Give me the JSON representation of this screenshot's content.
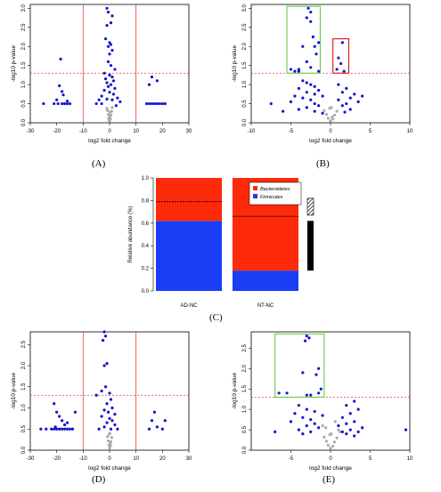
{
  "captions": {
    "a": "(A)",
    "b": "(B)",
    "c": "(C)",
    "d": "(D)",
    "e": "(E)"
  },
  "colors": {
    "point": "#1515d0",
    "gray_point": "#aaaaaa",
    "threshold": "#e84040",
    "green_box": "#66cc44",
    "red_box": "#e01010",
    "firmicutes": "#1a3df5",
    "bacteroidetes": "#ff2a0a"
  },
  "chart_data": [
    {
      "id": "A",
      "type": "scatter",
      "xlabel": "log2 fold change",
      "ylabel": "-log10 p-value",
      "xlim": [
        -30,
        30
      ],
      "ylim": [
        0,
        3.1
      ],
      "xticks": [
        "-30",
        "-20",
        "-10",
        "0",
        "10",
        "20",
        "30"
      ],
      "xtick_values": [
        -30,
        -20,
        -10,
        0,
        10,
        20,
        30
      ],
      "yticks": [
        "0.0",
        "0.5",
        "1.0",
        "1.5",
        "2.0",
        "2.5",
        "3.0"
      ],
      "ytick_values": [
        0,
        0.5,
        1,
        1.5,
        2,
        2.5,
        3
      ],
      "hline": 1.3,
      "vlines": [
        -10,
        10
      ],
      "points": [
        [
          -18.5,
          1.67
        ],
        [
          -19,
          0.97
        ],
        [
          -18,
          0.82
        ],
        [
          -17.5,
          0.73
        ],
        [
          -20,
          0.6
        ],
        [
          -16,
          0.57
        ],
        [
          -21,
          0.5
        ],
        [
          -19.5,
          0.5
        ],
        [
          -18,
          0.5
        ],
        [
          -17,
          0.5
        ],
        [
          -16,
          0.5
        ],
        [
          -15,
          0.5
        ],
        [
          -25,
          0.5
        ],
        [
          -1,
          3.0
        ],
        [
          -0.5,
          2.9
        ],
        [
          1,
          2.8
        ],
        [
          0.5,
          2.62
        ],
        [
          -1,
          2.55
        ],
        [
          -1.5,
          2.2
        ],
        [
          0,
          2.1
        ],
        [
          0.5,
          2.05
        ],
        [
          -0.5,
          2.0
        ],
        [
          1,
          1.9
        ],
        [
          0,
          1.8
        ],
        [
          -0.5,
          1.6
        ],
        [
          0.5,
          1.5
        ],
        [
          2,
          1.4
        ],
        [
          -2,
          1.3
        ],
        [
          0,
          1.25
        ],
        [
          1,
          1.2
        ],
        [
          -1.5,
          1.15
        ],
        [
          1.5,
          1.1
        ],
        [
          -1,
          1.05
        ],
        [
          0.5,
          1.0
        ],
        [
          -0.5,
          0.95
        ],
        [
          2,
          0.9
        ],
        [
          -2,
          0.85
        ],
        [
          0,
          0.8
        ],
        [
          1.5,
          0.75
        ],
        [
          -3,
          0.7
        ],
        [
          3,
          0.65
        ],
        [
          -1,
          0.62
        ],
        [
          1,
          0.6
        ],
        [
          -3,
          0.5
        ],
        [
          4,
          0.55
        ],
        [
          -5,
          0.5
        ],
        [
          -4,
          0.6
        ],
        [
          2.5,
          0.45
        ],
        [
          16,
          1.2
        ],
        [
          18,
          1.1
        ],
        [
          15,
          1.0
        ],
        [
          14,
          0.5
        ],
        [
          15,
          0.5
        ],
        [
          16,
          0.5
        ],
        [
          17,
          0.5
        ],
        [
          18,
          0.5
        ],
        [
          19,
          0.5
        ],
        [
          20,
          0.5
        ],
        [
          21,
          0.5
        ]
      ],
      "gray_points": [
        [
          0,
          0.05
        ],
        [
          0.3,
          0.1
        ],
        [
          -0.3,
          0.12
        ],
        [
          0.5,
          0.2
        ],
        [
          -0.5,
          0.22
        ],
        [
          0.8,
          0.3
        ],
        [
          -0.8,
          0.32
        ],
        [
          1,
          0.4
        ],
        [
          -1,
          0.38
        ],
        [
          0,
          0.15
        ],
        [
          0.2,
          0.28
        ],
        [
          -0.2,
          0.08
        ]
      ]
    },
    {
      "id": "B",
      "type": "scatter",
      "xlabel": "log2 fold change",
      "ylabel": "-log10 p-value",
      "xlim": [
        -10,
        10
      ],
      "ylim": [
        0,
        3.1
      ],
      "xticks": [
        "-10",
        "-5",
        "0",
        "5",
        "10"
      ],
      "xtick_values": [
        -10,
        -5,
        0,
        5,
        10
      ],
      "yticks": [
        "0.0",
        "0.5",
        "1.0",
        "1.5",
        "2.0",
        "2.5",
        "3.0"
      ],
      "ytick_values": [
        0,
        0.5,
        1,
        1.5,
        2,
        2.5,
        3
      ],
      "hline": 1.3,
      "boxes": [
        {
          "color": "green",
          "x": [
            -5.5,
            -1.3
          ],
          "y": [
            1.3,
            3.05
          ]
        },
        {
          "color": "red",
          "x": [
            0.3,
            2.3
          ],
          "y": [
            1.3,
            2.2
          ]
        }
      ],
      "points": [
        [
          -2.8,
          3.0
        ],
        [
          -2.5,
          2.9
        ],
        [
          -3.0,
          2.75
        ],
        [
          -2.5,
          2.65
        ],
        [
          -2.2,
          2.25
        ],
        [
          -1.5,
          2.1
        ],
        [
          -3.5,
          2.0
        ],
        [
          -2,
          2.0
        ],
        [
          -1.8,
          1.8
        ],
        [
          -3,
          1.6
        ],
        [
          -2.5,
          1.45
        ],
        [
          -4,
          1.4
        ],
        [
          -1.5,
          1.35
        ],
        [
          -5,
          1.4
        ],
        [
          -4.5,
          1.35
        ],
        [
          -4,
          1.35
        ],
        [
          1.5,
          2.1
        ],
        [
          1,
          1.7
        ],
        [
          1.3,
          1.55
        ],
        [
          0.8,
          1.4
        ],
        [
          1.7,
          1.35
        ],
        [
          -3.5,
          1.1
        ],
        [
          -3,
          1.05
        ],
        [
          -2.5,
          1.0
        ],
        [
          -2,
          0.95
        ],
        [
          -4,
          0.9
        ],
        [
          -1.5,
          0.85
        ],
        [
          -3,
          0.8
        ],
        [
          -2,
          0.75
        ],
        [
          -4.5,
          0.7
        ],
        [
          -1,
          0.7
        ],
        [
          -3.5,
          0.65
        ],
        [
          -2.5,
          0.6
        ],
        [
          -5,
          0.55
        ],
        [
          -7.5,
          0.5
        ],
        [
          -2,
          0.5
        ],
        [
          -1.5,
          0.45
        ],
        [
          -3,
          0.4
        ],
        [
          -4,
          0.35
        ],
        [
          -6,
          0.3
        ],
        [
          -2,
          0.3
        ],
        [
          -1,
          0.25
        ],
        [
          1,
          1.0
        ],
        [
          2,
          0.9
        ],
        [
          1.5,
          0.8
        ],
        [
          3,
          0.75
        ],
        [
          2.5,
          0.65
        ],
        [
          1,
          0.6
        ],
        [
          2,
          0.5
        ],
        [
          3.5,
          0.55
        ],
        [
          1.5,
          0.45
        ],
        [
          4,
          0.7
        ],
        [
          2.5,
          0.35
        ],
        [
          1.8,
          0.28
        ]
      ],
      "gray_points": [
        [
          0,
          0.05
        ],
        [
          0.3,
          0.1
        ],
        [
          -0.3,
          0.12
        ],
        [
          0.5,
          0.2
        ],
        [
          -0.5,
          0.22
        ],
        [
          0.8,
          0.3
        ],
        [
          -0.8,
          0.32
        ],
        [
          0.1,
          0.4
        ],
        [
          -0.1,
          0.38
        ],
        [
          0.2,
          0.15
        ]
      ]
    },
    {
      "id": "C",
      "type": "bar",
      "ylabel": "Relative abundance (%)",
      "ylim": [
        0,
        1.0
      ],
      "yticks": [
        "0.0",
        "0.2",
        "0.4",
        "0.6",
        "0.8",
        "1.0"
      ],
      "ytick_values": [
        0,
        0.2,
        0.4,
        0.6,
        0.8,
        1.0
      ],
      "categories": [
        "AD-NC",
        "NT-NC"
      ],
      "series": [
        {
          "name": "Firmicutes",
          "values": [
            0.62,
            0.18
          ]
        },
        {
          "name": "Bacteroidetes",
          "values": [
            0.38,
            0.82
          ]
        }
      ],
      "dashed_lines": [
        0.79,
        0.66
      ],
      "legend_position": "top-right"
    },
    {
      "id": "D",
      "type": "scatter",
      "xlabel": "log2 fold change",
      "ylabel": "-log10 p-value",
      "xlim": [
        -30,
        30
      ],
      "ylim": [
        0,
        2.8
      ],
      "xticks": [
        "-30",
        "-20",
        "-10",
        "0",
        "10",
        "20",
        "30"
      ],
      "xtick_values": [
        -30,
        -20,
        -10,
        0,
        10,
        20,
        30
      ],
      "yticks": [
        "0.0",
        "0.5",
        "1.0",
        "1.5",
        "2.0",
        "2.5"
      ],
      "ytick_values": [
        0,
        0.5,
        1,
        1.5,
        2,
        2.5
      ],
      "hline": 1.3,
      "vlines": [
        -10,
        10
      ],
      "points": [
        [
          -2,
          2.8
        ],
        [
          -1.5,
          2.7
        ],
        [
          -2.5,
          2.6
        ],
        [
          -1,
          2.05
        ],
        [
          -2,
          2.0
        ],
        [
          -1.5,
          1.5
        ],
        [
          -3,
          1.4
        ],
        [
          0,
          1.35
        ],
        [
          -5,
          1.3
        ],
        [
          0.5,
          1.2
        ],
        [
          -1,
          1.1
        ],
        [
          1,
          1.0
        ],
        [
          -2,
          0.95
        ],
        [
          -0.5,
          0.9
        ],
        [
          2,
          0.85
        ],
        [
          -3,
          0.8
        ],
        [
          0,
          0.75
        ],
        [
          1,
          0.7
        ],
        [
          -1,
          0.65
        ],
        [
          2,
          0.6
        ],
        [
          -2,
          0.55
        ],
        [
          3,
          0.5
        ],
        [
          -4,
          0.5
        ],
        [
          0.5,
          0.5
        ],
        [
          -21,
          1.1
        ],
        [
          -20,
          0.9
        ],
        [
          -19,
          0.8
        ],
        [
          -18,
          0.7
        ],
        [
          -17,
          0.6
        ],
        [
          -16,
          0.65
        ],
        [
          -20.5,
          0.55
        ],
        [
          -22,
          0.5
        ],
        [
          -21,
          0.5
        ],
        [
          -20,
          0.5
        ],
        [
          -19,
          0.5
        ],
        [
          -18,
          0.5
        ],
        [
          -17,
          0.5
        ],
        [
          -16,
          0.5
        ],
        [
          -15,
          0.5
        ],
        [
          -14,
          0.5
        ],
        [
          -13,
          0.9
        ],
        [
          -26,
          0.5
        ],
        [
          -24,
          0.5
        ],
        [
          17,
          0.9
        ],
        [
          16,
          0.7
        ],
        [
          18,
          0.55
        ],
        [
          15,
          0.5
        ],
        [
          20,
          0.5
        ],
        [
          21,
          0.7
        ]
      ],
      "gray_points": [
        [
          0,
          0.05
        ],
        [
          0.3,
          0.1
        ],
        [
          -0.3,
          0.12
        ],
        [
          0.5,
          0.2
        ],
        [
          -0.5,
          0.22
        ],
        [
          0.8,
          0.3
        ],
        [
          -0.8,
          0.32
        ],
        [
          0.1,
          0.4
        ],
        [
          -0.1,
          0.38
        ],
        [
          0.2,
          0.15
        ]
      ]
    },
    {
      "id": "E",
      "type": "scatter",
      "xlabel": "log2 fold change",
      "ylabel": "-log10 p-value",
      "xlim": [
        -10,
        10
      ],
      "ylim": [
        0,
        2.9
      ],
      "xticks": [
        "-5",
        "0",
        "5",
        "10"
      ],
      "xtick_values": [
        -5,
        0,
        5,
        10
      ],
      "yticks": [
        "0.0",
        "0.5",
        "1.0",
        "1.5",
        "2.0",
        "2.5"
      ],
      "ytick_values": [
        0,
        0.5,
        1,
        1.5,
        2,
        2.5
      ],
      "hline": 1.3,
      "boxes": [
        {
          "color": "green",
          "x": [
            -7,
            -0.8
          ],
          "y": [
            1.3,
            2.85
          ]
        }
      ],
      "points": [
        [
          -3,
          2.8
        ],
        [
          -2.7,
          2.75
        ],
        [
          -3.2,
          2.68
        ],
        [
          -1.5,
          2.0
        ],
        [
          -3.5,
          1.9
        ],
        [
          -1.8,
          1.85
        ],
        [
          -1.2,
          1.5
        ],
        [
          -1.5,
          1.4
        ],
        [
          -6.5,
          1.4
        ],
        [
          -5.5,
          1.4
        ],
        [
          -3,
          1.35
        ],
        [
          -2.5,
          1.35
        ],
        [
          -4,
          1.1
        ],
        [
          -3,
          1.0
        ],
        [
          -2,
          0.95
        ],
        [
          -4.5,
          0.9
        ],
        [
          -1,
          0.85
        ],
        [
          -3.5,
          0.8
        ],
        [
          -2.5,
          0.75
        ],
        [
          -5,
          0.7
        ],
        [
          -2,
          0.65
        ],
        [
          -3,
          0.6
        ],
        [
          -1.5,
          0.55
        ],
        [
          -4,
          0.5
        ],
        [
          -7,
          0.45
        ],
        [
          -2.5,
          0.45
        ],
        [
          -3.5,
          0.4
        ],
        [
          3,
          1.2
        ],
        [
          2,
          1.1
        ],
        [
          3.5,
          1.0
        ],
        [
          2.5,
          0.9
        ],
        [
          1.5,
          0.8
        ],
        [
          3,
          0.7
        ],
        [
          2,
          0.65
        ],
        [
          1,
          0.6
        ],
        [
          4,
          0.55
        ],
        [
          2.5,
          0.5
        ],
        [
          3.5,
          0.45
        ],
        [
          1.5,
          0.45
        ],
        [
          9.5,
          0.5
        ],
        [
          2,
          0.4
        ],
        [
          3,
          0.35
        ]
      ],
      "gray_points": [
        [
          0,
          0.05
        ],
        [
          0.3,
          0.1
        ],
        [
          -0.3,
          0.12
        ],
        [
          0.5,
          0.2
        ],
        [
          -0.5,
          0.22
        ],
        [
          0.8,
          0.3
        ],
        [
          -0.8,
          0.32
        ],
        [
          0.1,
          0.4
        ],
        [
          -0.1,
          0.38
        ],
        [
          1,
          0.5
        ],
        [
          -1,
          0.6
        ],
        [
          0.6,
          0.7
        ],
        [
          -0.6,
          0.55
        ],
        [
          1.2,
          0.45
        ]
      ]
    }
  ]
}
